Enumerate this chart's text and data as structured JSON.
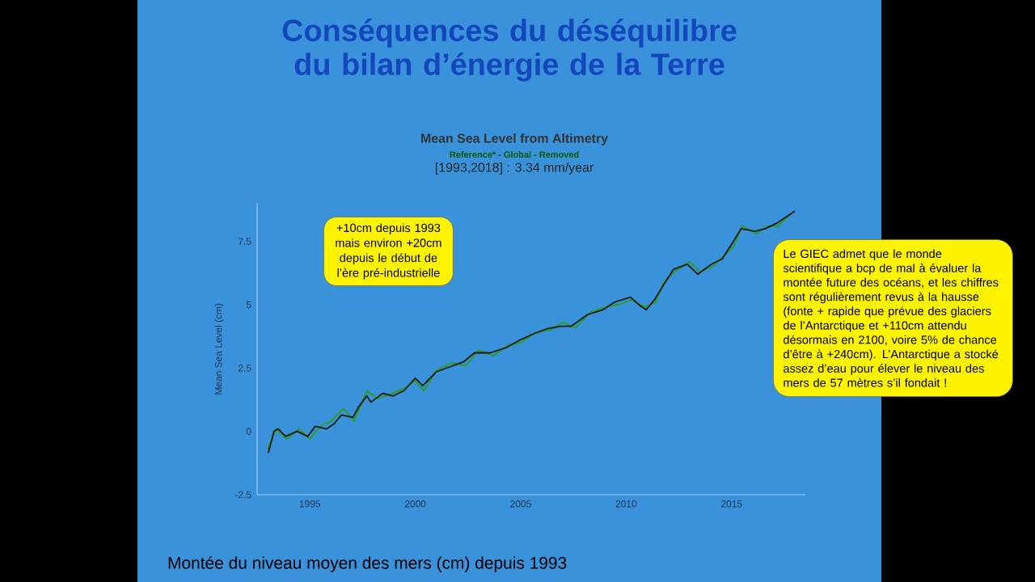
{
  "chart_data": {
    "type": "line",
    "title": "Mean Sea Level from Altimetry",
    "subtitle": "Reference* - Global - Removed",
    "ylabel": "Mean Sea Level (cm)",
    "annotations": [
      "Conséquences du déséquilibre du bilan d’énergie de la Terre",
      "[1993,2018] : 3.34 mm/year",
      "+10cm depuis 1993 mais environ +20cm depuis le début de l’ère pré-industrielle",
      "Le GIEC admet que le monde scientifique a bcp de mal à évaluer la montée future des océans, et les chiffres sont régulièrement revus à la hausse (fonte + rapide que prévue des glaciers de l’Antarctique et +110cm attendu désormais en 2100, voire 5% de chance d’être à +240cm). L’Antarctique a stocké assez d’eau pour élever le niveau des mers de 57 mètres s’il fondait !",
      "Montée du niveau moyen des mers (cm) depuis 1993"
    ],
    "series": [
      {
        "color": "#2e9b3c",
        "x": [
          1993.0,
          1993.4,
          1993.9,
          1994.5,
          1995.0,
          1995.5,
          1996.0,
          1996.6,
          1997.1,
          1997.4,
          1997.7,
          1998.2,
          1998.9,
          1999.5,
          2000.0,
          2000.4,
          2001.0,
          2001.7,
          2002.4,
          2003.0,
          2003.7,
          2004.4,
          2005.0,
          2005.7,
          2006.4,
          2007.0,
          2007.6,
          2008.3,
          2009.0,
          2009.6,
          2010.3,
          2010.9,
          2011.4,
          2011.8,
          2012.3,
          2013.0,
          2013.5,
          2014.1,
          2014.6,
          2015.1,
          2015.5,
          2016.2,
          2016.7,
          2017.2,
          2017.8
        ],
        "values": [
          -0.7,
          0.1,
          -0.3,
          0.1,
          -0.3,
          0.2,
          0.4,
          0.9,
          0.4,
          1.0,
          1.6,
          1.3,
          1.5,
          1.7,
          2.0,
          1.6,
          2.4,
          2.7,
          2.6,
          3.2,
          3.0,
          3.4,
          3.5,
          3.9,
          4.0,
          4.3,
          4.1,
          4.7,
          4.9,
          5.0,
          5.2,
          4.9,
          5.1,
          5.9,
          6.3,
          6.7,
          6.3,
          6.5,
          6.9,
          7.3,
          8.1,
          7.8,
          8.1,
          8.1,
          8.6
        ]
      },
      {
        "color": "#0d1a12",
        "x": [
          1993.03,
          1993.3,
          1993.5,
          1993.85,
          1994.4,
          1994.9,
          1995.25,
          1995.8,
          1996.15,
          1996.5,
          1997.05,
          1997.3,
          1997.7,
          1997.9,
          1998.45,
          1998.95,
          1999.45,
          2000.0,
          2000.35,
          2001.0,
          2001.65,
          2002.3,
          2002.8,
          2003.55,
          2004.3,
          2004.95,
          2005.6,
          2006.25,
          2006.9,
          2007.4,
          2008.15,
          2008.9,
          2009.45,
          2010.2,
          2010.6,
          2010.95,
          2011.35,
          2011.75,
          2012.25,
          2012.9,
          2013.4,
          2014.05,
          2014.55,
          2015.05,
          2015.45,
          2016.1,
          2016.6,
          2017.1,
          2017.75,
          2018.0
        ],
        "values": [
          -0.85,
          0,
          0.1,
          -0.2,
          0,
          -0.2,
          0.2,
          0.1,
          0.3,
          0.65,
          0.55,
          0.95,
          1.4,
          1.15,
          1.5,
          1.4,
          1.6,
          2.1,
          1.8,
          2.35,
          2.55,
          2.75,
          3.1,
          3.1,
          3.3,
          3.6,
          3.85,
          4.05,
          4.15,
          4.15,
          4.6,
          4.8,
          5.1,
          5.3,
          5.0,
          4.8,
          5.2,
          5.75,
          6.4,
          6.6,
          6.2,
          6.6,
          6.8,
          7.45,
          8.0,
          7.9,
          8.0,
          8.2,
          8.55,
          8.7
        ]
      }
    ],
    "xlim": [
      1992.5,
      2018.5
    ],
    "ylim": [
      -2.5,
      9
    ],
    "xticks": [
      1995,
      2000,
      2005,
      2010,
      2015
    ],
    "yticks": [
      -2.5,
      0,
      2.5,
      5,
      7.5
    ],
    "grid": false,
    "marker": "none",
    "line_style": "solid"
  }
}
